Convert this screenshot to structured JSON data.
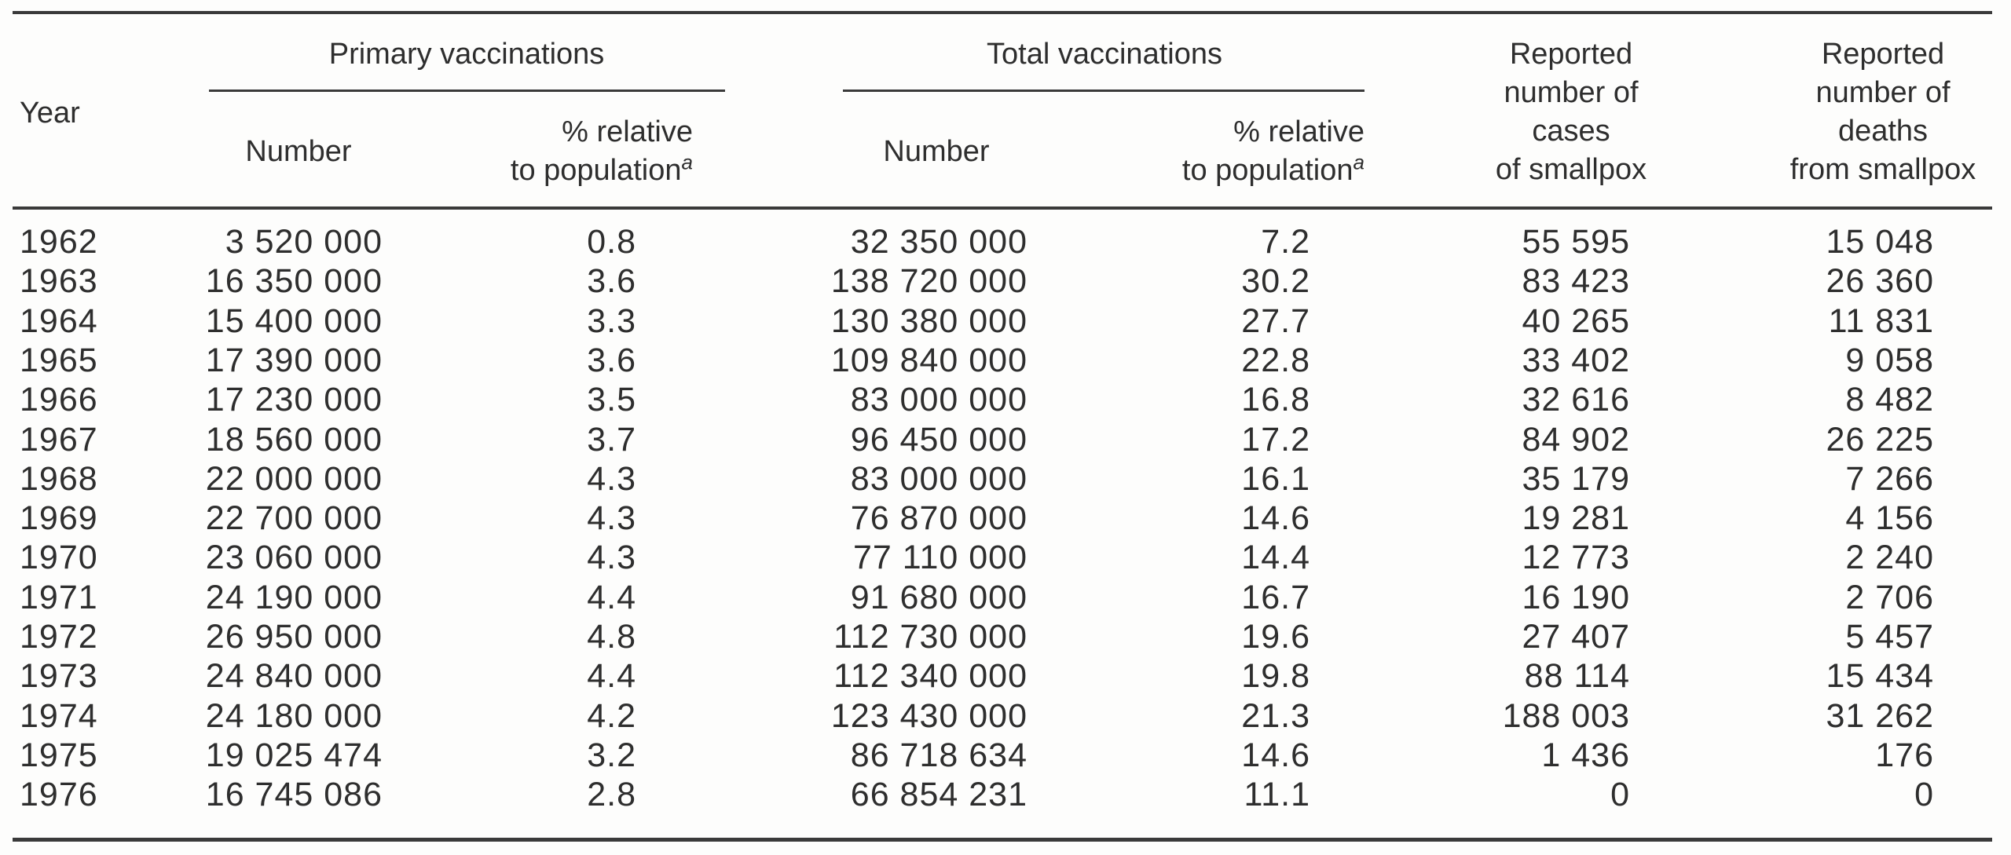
{
  "headers": {
    "year": "Year",
    "primary_group": "Primary vaccinations",
    "total_group": "Total vaccinations",
    "number": "Number",
    "pct_line1": "% relative",
    "pct_line2": "to population",
    "pct_footnote": "a",
    "cases": [
      "Reported",
      "number of",
      "cases",
      "of smallpox"
    ],
    "deaths": [
      "Reported",
      "number of",
      "deaths",
      "from smallpox"
    ]
  },
  "rows": [
    [
      "1962",
      "3 520 000",
      "0.8",
      "32 350 000",
      "7.2",
      "55 595",
      "15 048"
    ],
    [
      "1963",
      "16 350 000",
      "3.6",
      "138 720 000",
      "30.2",
      "83 423",
      "26 360"
    ],
    [
      "1964",
      "15 400 000",
      "3.3",
      "130 380 000",
      "27.7",
      "40 265",
      "11 831"
    ],
    [
      "1965",
      "17 390 000",
      "3.6",
      "109 840 000",
      "22.8",
      "33 402",
      "9 058"
    ],
    [
      "1966",
      "17 230 000",
      "3.5",
      "83 000 000",
      "16.8",
      "32 616",
      "8 482"
    ],
    [
      "1967",
      "18 560 000",
      "3.7",
      "96 450 000",
      "17.2",
      "84 902",
      "26 225"
    ],
    [
      "1968",
      "22 000 000",
      "4.3",
      "83 000 000",
      "16.1",
      "35 179",
      "7 266"
    ],
    [
      "1969",
      "22 700 000",
      "4.3",
      "76 870 000",
      "14.6",
      "19 281",
      "4 156"
    ],
    [
      "1970",
      "23 060 000",
      "4.3",
      "77 110 000",
      "14.4",
      "12 773",
      "2 240"
    ],
    [
      "1971",
      "24 190 000",
      "4.4",
      "91 680 000",
      "16.7",
      "16 190",
      "2 706"
    ],
    [
      "1972",
      "26 950 000",
      "4.8",
      "112 730 000",
      "19.6",
      "27 407",
      "5 457"
    ],
    [
      "1973",
      "24 840 000",
      "4.4",
      "112 340 000",
      "19.8",
      "88 114",
      "15 434"
    ],
    [
      "1974",
      "24 180 000",
      "4.2",
      "123 430 000",
      "21.3",
      "188 003",
      "31 262"
    ],
    [
      "1975",
      "19 025 474",
      "3.2",
      "86 718 634",
      "14.6",
      "1 436",
      "176"
    ],
    [
      "1976",
      "16 745 086",
      "2.8",
      "66 854 231",
      "11.1",
      "0",
      "0"
    ]
  ]
}
